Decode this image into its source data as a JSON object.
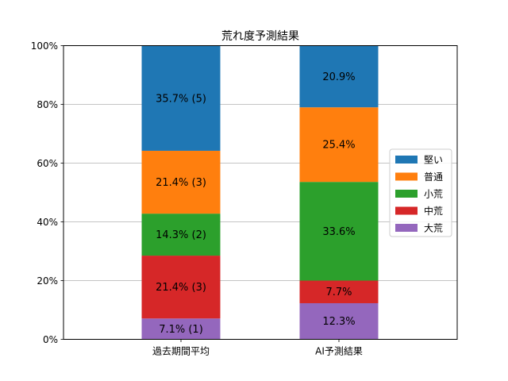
{
  "chart_data": {
    "type": "bar",
    "stacked": true,
    "title": "荒れ度予測結果",
    "xlabel": "",
    "ylabel": "",
    "categories": [
      "過去期間平均",
      "AI予測結果"
    ],
    "ylim": [
      0,
      100
    ],
    "yticks": [
      "0%",
      "20%",
      "40%",
      "60%",
      "80%",
      "100%"
    ],
    "grid": "horizontal",
    "legend_position": "right",
    "series": [
      {
        "name": "大荒",
        "color": "#9467bd",
        "values": [
          7.1,
          12.3
        ],
        "labels": [
          "7.1% (1)",
          "12.3%"
        ]
      },
      {
        "name": "中荒",
        "color": "#d62728",
        "values": [
          21.4,
          7.7
        ],
        "labels": [
          "21.4% (3)",
          "7.7%"
        ]
      },
      {
        "name": "小荒",
        "color": "#2ca02c",
        "values": [
          14.3,
          33.6
        ],
        "labels": [
          "14.3% (2)",
          "33.6%"
        ]
      },
      {
        "name": "普通",
        "color": "#ff7f0e",
        "values": [
          21.4,
          25.4
        ],
        "labels": [
          "21.4% (3)",
          "25.4%"
        ]
      },
      {
        "name": "堅い",
        "color": "#1f77b4",
        "values": [
          35.7,
          20.9
        ],
        "labels": [
          "35.7% (5)",
          "20.9%"
        ]
      }
    ],
    "legend_order": [
      "堅い",
      "普通",
      "小荒",
      "中荒",
      "大荒"
    ]
  }
}
